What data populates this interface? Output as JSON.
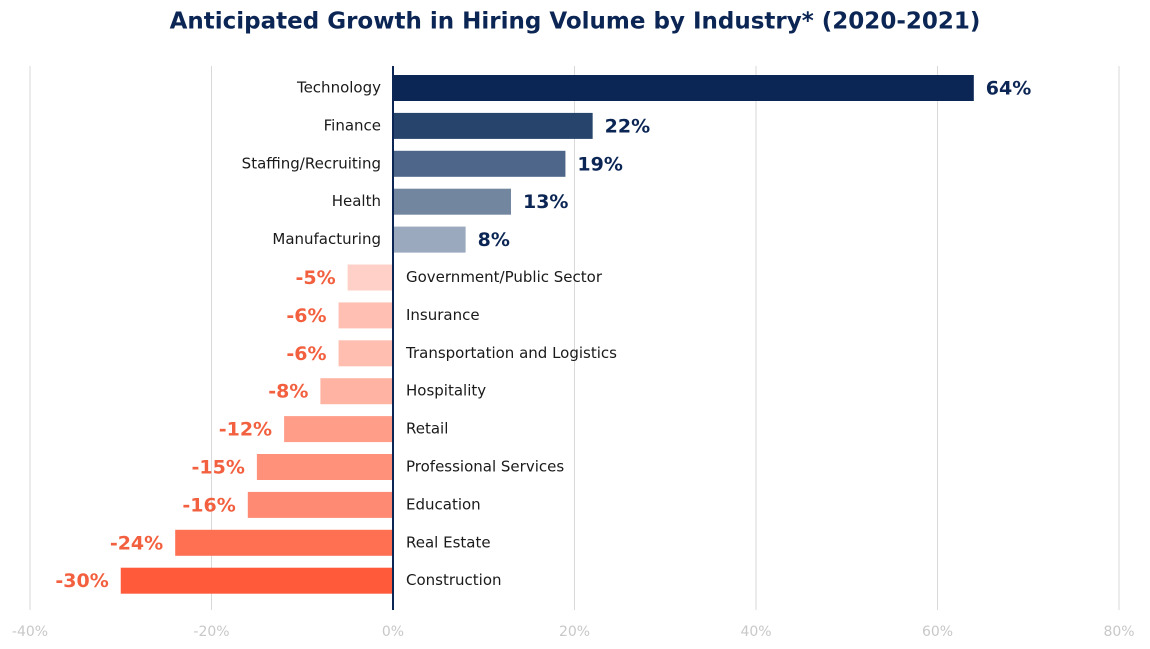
{
  "chart_data": {
    "type": "barh",
    "title": "Anticipated Growth in Hiring Volume by Industry* (2020-2021)",
    "categories": [
      "Technology",
      "Finance",
      "Staffing/Recruiting",
      "Health",
      "Manufacturing",
      "Government/Public Sector",
      "Insurance",
      "Transportation and Logistics",
      "Hospitality",
      "Retail",
      "Professional Services",
      "Education",
      "Real Estate",
      "Construction"
    ],
    "values": [
      64,
      22,
      19,
      13,
      8,
      -5,
      -6,
      -6,
      -8,
      -12,
      -15,
      -16,
      -24,
      -30
    ],
    "value_labels": [
      "64%",
      "22%",
      "19%",
      "13%",
      "8%",
      "-5%",
      "-6%",
      "-6%",
      "-8%",
      "-12%",
      "-15%",
      "-16%",
      "-24%",
      "-30%"
    ],
    "colors": [
      "#0b2554",
      "#26446c",
      "#4d6689",
      "#72869f",
      "#9aa9bd",
      "#ffd0c7",
      "#ffc0b3",
      "#ffbeb0",
      "#ffb3a2",
      "#ff9d88",
      "#ff907a",
      "#ff8a73",
      "#ff7053",
      "#ff5b3b"
    ],
    "xlim": [
      -40,
      80
    ],
    "xticks": [
      {
        "value": -40,
        "label": "-40%"
      },
      {
        "value": -20,
        "label": "-20%"
      },
      {
        "value": 0,
        "label": "0%"
      },
      {
        "value": 20,
        "label": "20%"
      },
      {
        "value": 40,
        "label": "40%"
      },
      {
        "value": 60,
        "label": "60%"
      },
      {
        "value": 80,
        "label": "80%"
      }
    ],
    "grid": true
  }
}
